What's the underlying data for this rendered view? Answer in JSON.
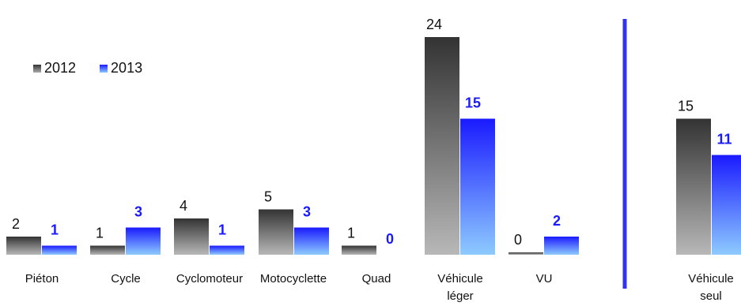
{
  "chart_data": {
    "type": "bar",
    "categories": [
      "Piéton",
      "Cycle",
      "Cyclomoteur",
      "Motocyclette",
      "Quad",
      "Véhicule léger",
      "VU",
      "Véhicule seul"
    ],
    "series": [
      {
        "name": "2012",
        "values": [
          2,
          1,
          4,
          5,
          1,
          24,
          0,
          15
        ]
      },
      {
        "name": "2013",
        "values": [
          1,
          3,
          1,
          3,
          0,
          15,
          2,
          11
        ]
      }
    ],
    "legend": "top-left",
    "grid": false,
    "colors": {
      "2012": "#3a3a3a",
      "2013": "#1a1aff",
      "separator": "#3333ee"
    }
  }
}
